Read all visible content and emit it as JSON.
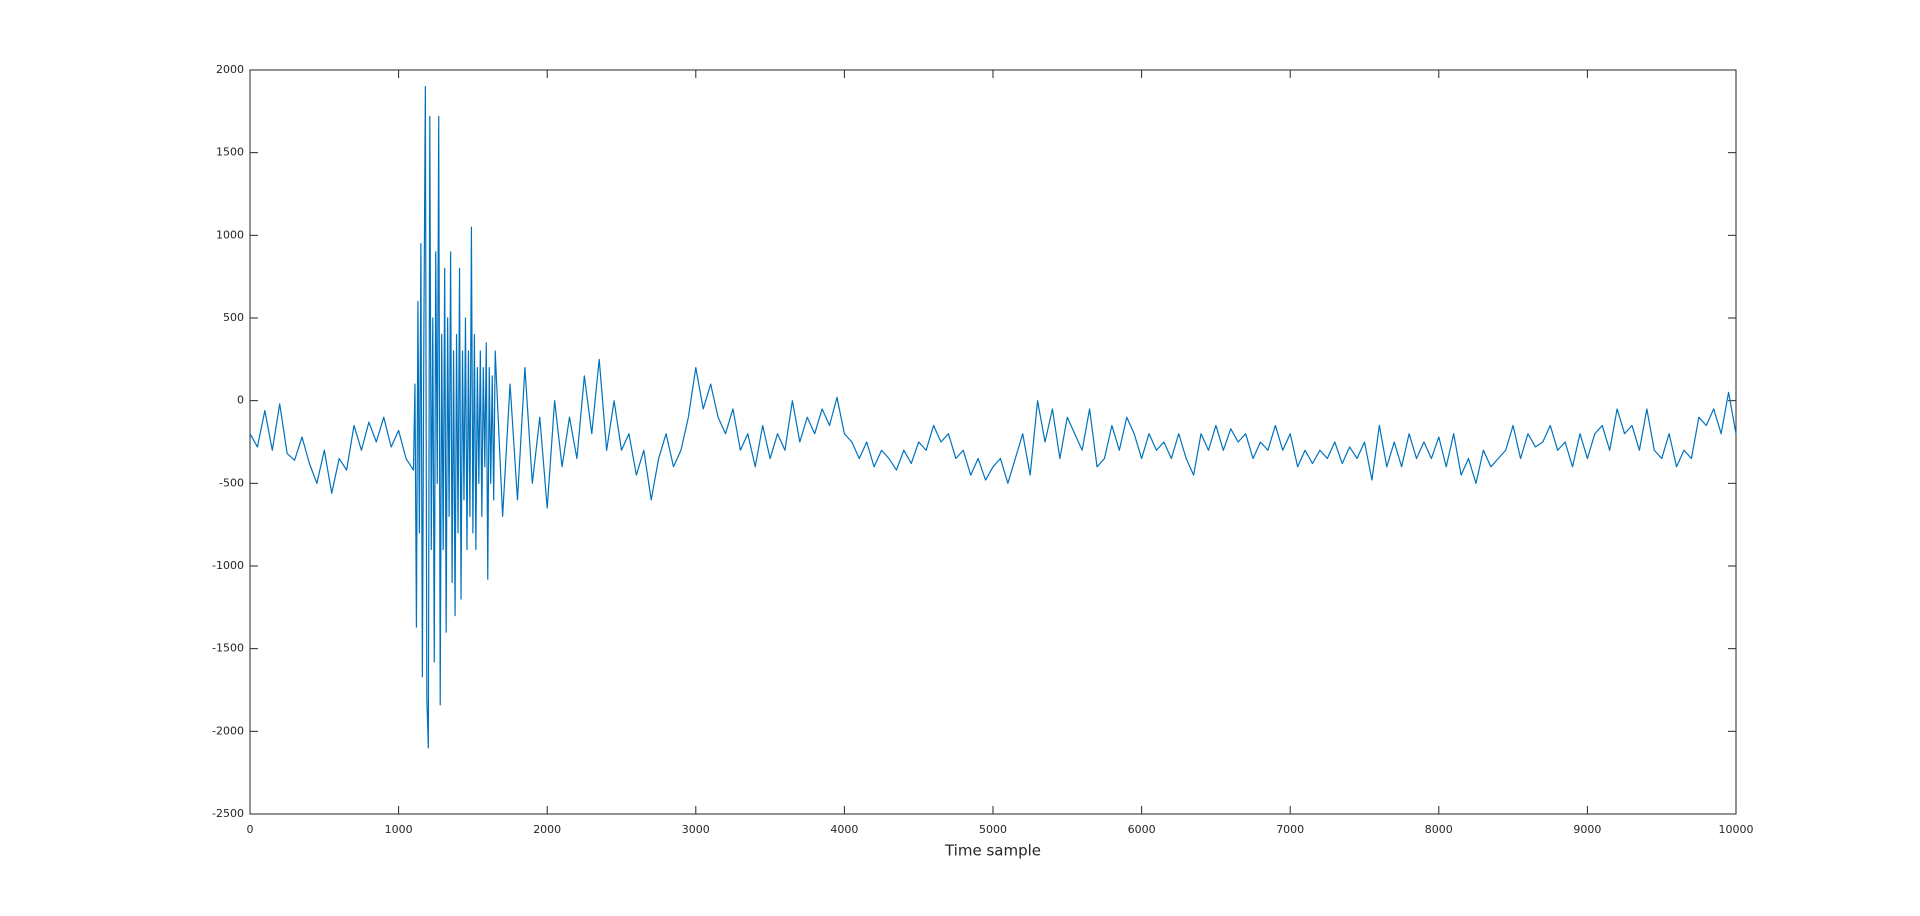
{
  "chart_data": {
    "type": "line",
    "x_label": "Time sample",
    "color": "#0072bd",
    "xlim": [
      0,
      10000
    ],
    "xticks": [
      0,
      1000,
      2000,
      3000,
      4000,
      5000,
      6000,
      7000,
      8000,
      9000,
      10000
    ],
    "ylim": [
      -2500,
      2000
    ],
    "yticks": [
      -2500,
      -2000,
      -1500,
      -1000,
      -500,
      0,
      500,
      1000,
      1500,
      2000
    ],
    "x": [
      0,
      50,
      100,
      150,
      200,
      250,
      300,
      350,
      400,
      450,
      500,
      550,
      600,
      650,
      700,
      750,
      800,
      850,
      900,
      950,
      1000,
      1050,
      1100,
      1110,
      1120,
      1130,
      1140,
      1150,
      1160,
      1170,
      1180,
      1190,
      1200,
      1210,
      1220,
      1230,
      1240,
      1250,
      1260,
      1270,
      1280,
      1290,
      1300,
      1310,
      1320,
      1330,
      1340,
      1350,
      1360,
      1370,
      1380,
      1390,
      1400,
      1410,
      1420,
      1430,
      1440,
      1450,
      1460,
      1470,
      1480,
      1490,
      1500,
      1510,
      1520,
      1530,
      1540,
      1550,
      1560,
      1570,
      1580,
      1590,
      1600,
      1610,
      1620,
      1630,
      1640,
      1650,
      1700,
      1750,
      1800,
      1850,
      1900,
      1950,
      2000,
      2050,
      2100,
      2150,
      2200,
      2250,
      2300,
      2350,
      2400,
      2450,
      2500,
      2550,
      2600,
      2650,
      2700,
      2750,
      2800,
      2850,
      2900,
      2950,
      3000,
      3050,
      3100,
      3150,
      3200,
      3250,
      3300,
      3350,
      3400,
      3450,
      3500,
      3550,
      3600,
      3650,
      3700,
      3750,
      3800,
      3850,
      3900,
      3950,
      4000,
      4050,
      4100,
      4150,
      4200,
      4250,
      4300,
      4350,
      4400,
      4450,
      4500,
      4550,
      4600,
      4650,
      4700,
      4750,
      4800,
      4850,
      4900,
      4950,
      5000,
      5050,
      5100,
      5150,
      5200,
      5250,
      5300,
      5350,
      5400,
      5450,
      5500,
      5550,
      5600,
      5650,
      5700,
      5750,
      5800,
      5850,
      5900,
      5950,
      6000,
      6050,
      6100,
      6150,
      6200,
      6250,
      6300,
      6350,
      6400,
      6450,
      6500,
      6550,
      6600,
      6650,
      6700,
      6750,
      6800,
      6850,
      6900,
      6950,
      7000,
      7050,
      7100,
      7150,
      7200,
      7250,
      7300,
      7350,
      7400,
      7450,
      7500,
      7550,
      7600,
      7650,
      7700,
      7750,
      7800,
      7850,
      7900,
      7950,
      8000,
      8050,
      8100,
      8150,
      8200,
      8250,
      8300,
      8350,
      8400,
      8450,
      8500,
      8550,
      8600,
      8650,
      8700,
      8750,
      8800,
      8850,
      8900,
      8950,
      9000,
      9050,
      9100,
      9150,
      9200,
      9250,
      9300,
      9350,
      9400,
      9450,
      9500,
      9550,
      9600,
      9650,
      9700,
      9750,
      9800,
      9850,
      9900,
      9950,
      10000
    ],
    "values": [
      -200,
      -280,
      -60,
      -300,
      -20,
      -320,
      -360,
      -220,
      -380,
      -500,
      -300,
      -560,
      -350,
      -420,
      -150,
      -300,
      -130,
      -250,
      -100,
      -280,
      -180,
      -350,
      -420,
      100,
      -1370,
      600,
      -800,
      950,
      -1670,
      400,
      1900,
      -1800,
      -2100,
      1720,
      -900,
      500,
      -1580,
      900,
      -500,
      1720,
      -1840,
      400,
      -900,
      800,
      -1400,
      500,
      -700,
      900,
      -1100,
      300,
      -1300,
      400,
      -800,
      800,
      -1200,
      300,
      -600,
      500,
      -900,
      300,
      -700,
      1050,
      -800,
      400,
      -900,
      200,
      -500,
      300,
      -700,
      200,
      -400,
      350,
      -1080,
      200,
      -500,
      150,
      -600,
      300,
      -700,
      100,
      -600,
      200,
      -500,
      -100,
      -650,
      0,
      -400,
      -100,
      -350,
      150,
      -200,
      250,
      -300,
      0,
      -300,
      -200,
      -450,
      -300,
      -600,
      -350,
      -200,
      -400,
      -300,
      -100,
      200,
      -50,
      100,
      -100,
      -200,
      -50,
      -300,
      -200,
      -400,
      -150,
      -350,
      -200,
      -300,
      0,
      -250,
      -100,
      -200,
      -50,
      -150,
      20,
      -200,
      -250,
      -350,
      -250,
      -400,
      -300,
      -350,
      -420,
      -300,
      -380,
      -250,
      -300,
      -150,
      -250,
      -200,
      -350,
      -300,
      -450,
      -350,
      -480,
      -400,
      -350,
      -500,
      -350,
      -200,
      -450,
      0,
      -250,
      -50,
      -350,
      -100,
      -200,
      -300,
      -50,
      -400,
      -350,
      -150,
      -300,
      -100,
      -200,
      -350,
      -200,
      -300,
      -250,
      -350,
      -200,
      -350,
      -450,
      -200,
      -300,
      -150,
      -300,
      -170,
      -250,
      -200,
      -350,
      -250,
      -300,
      -150,
      -300,
      -200,
      -400,
      -300,
      -380,
      -300,
      -350,
      -250,
      -380,
      -280,
      -350,
      -250,
      -480,
      -150,
      -400,
      -250,
      -400,
      -200,
      -350,
      -250,
      -350,
      -220,
      -400,
      -200,
      -450,
      -350,
      -500,
      -300,
      -400,
      -350,
      -300,
      -150,
      -350,
      -200,
      -280,
      -250,
      -150,
      -300,
      -250,
      -400,
      -200,
      -350,
      -200,
      -150,
      -300,
      -50,
      -200,
      -150,
      -300,
      -50,
      -300,
      -350,
      -200,
      -400,
      -300,
      -350,
      -100,
      -150,
      -50,
      -200,
      50,
      -200
    ]
  }
}
